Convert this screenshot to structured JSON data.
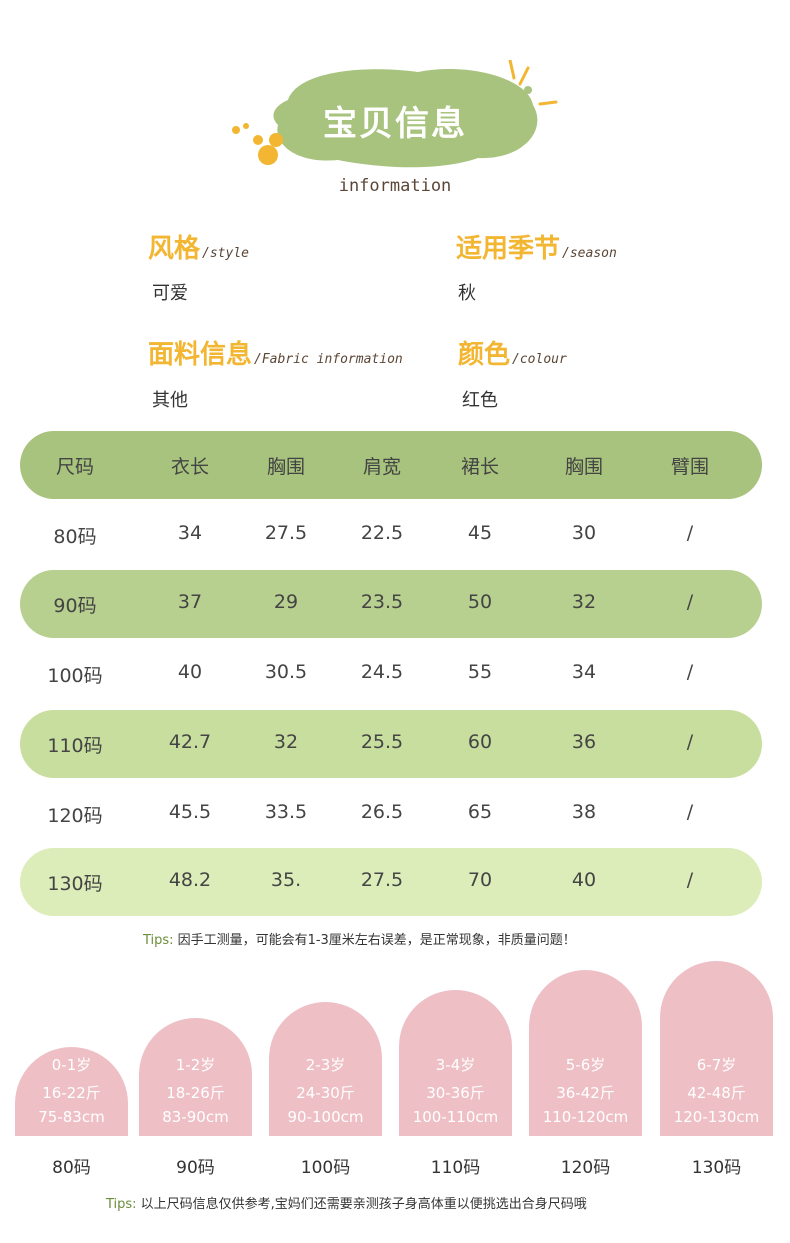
{
  "header": {
    "title": "宝贝信息",
    "subtitle": "information"
  },
  "info": [
    {
      "title": "风格",
      "sub": "/style",
      "value": "可爱"
    },
    {
      "title": "适用季节",
      "sub": "/season",
      "value": "秋"
    },
    {
      "title": "面料信息",
      "sub": "/Fabric information",
      "value": "其他"
    },
    {
      "title": "颜色",
      "sub": "/colour",
      "value": "红色"
    }
  ],
  "table": {
    "headers": [
      "尺码",
      "衣长",
      "胸围",
      "肩宽",
      "裙长",
      "胸围",
      "臂围"
    ],
    "rows": [
      [
        "80码",
        "34",
        "27.5",
        "22.5",
        "45",
        "30",
        "/"
      ],
      [
        "90码",
        "37",
        "29",
        "23.5",
        "50",
        "32",
        "/"
      ],
      [
        "100码",
        "40",
        "30.5",
        "24.5",
        "55",
        "34",
        "/"
      ],
      [
        "110码",
        "42.7",
        "32",
        "25.5",
        "60",
        "36",
        "/"
      ],
      [
        "120码",
        "45.5",
        "33.5",
        "26.5",
        "65",
        "38",
        "/"
      ],
      [
        "130码",
        "48.2",
        "35.",
        "27.5",
        "70",
        "40",
        "/"
      ]
    ],
    "colors": {
      "header": "#a8c37d",
      "row_90": "#b7cf8f",
      "row_110": "#c8de9f",
      "row_130": "#dcedb9"
    }
  },
  "tips1": {
    "label": "Tips:",
    "text": "因手工测量，可能会有1-3厘米左右误差，是正常现象，非质量问题！"
  },
  "ages": [
    {
      "age": "0-1岁",
      "weight": "16-22斤",
      "height": "75-83cm",
      "size": "80码"
    },
    {
      "age": "1-2岁",
      "weight": "18-26斤",
      "height": "83-90cm",
      "size": "90码"
    },
    {
      "age": "2-3岁",
      "weight": "24-30斤",
      "height": "90-100cm",
      "size": "100码"
    },
    {
      "age": "3-4岁",
      "weight": "30-36斤",
      "height": "100-110cm",
      "size": "110码"
    },
    {
      "age": "5-6岁",
      "weight": "36-42斤",
      "height": "110-120cm",
      "size": "120码"
    },
    {
      "age": "6-7岁",
      "weight": "42-48斤",
      "height": "120-130cm",
      "size": "130码"
    }
  ],
  "tips2": {
    "label": "Tips:",
    "text": "以上尺码信息仅供参考,宝妈们还需要亲测孩子身高体重以便挑选出合身尺码哦"
  },
  "colors": {
    "accent_green": "#a8c37d",
    "title_yellow": "#f2b632",
    "arch_pink": "#eec0c6"
  }
}
